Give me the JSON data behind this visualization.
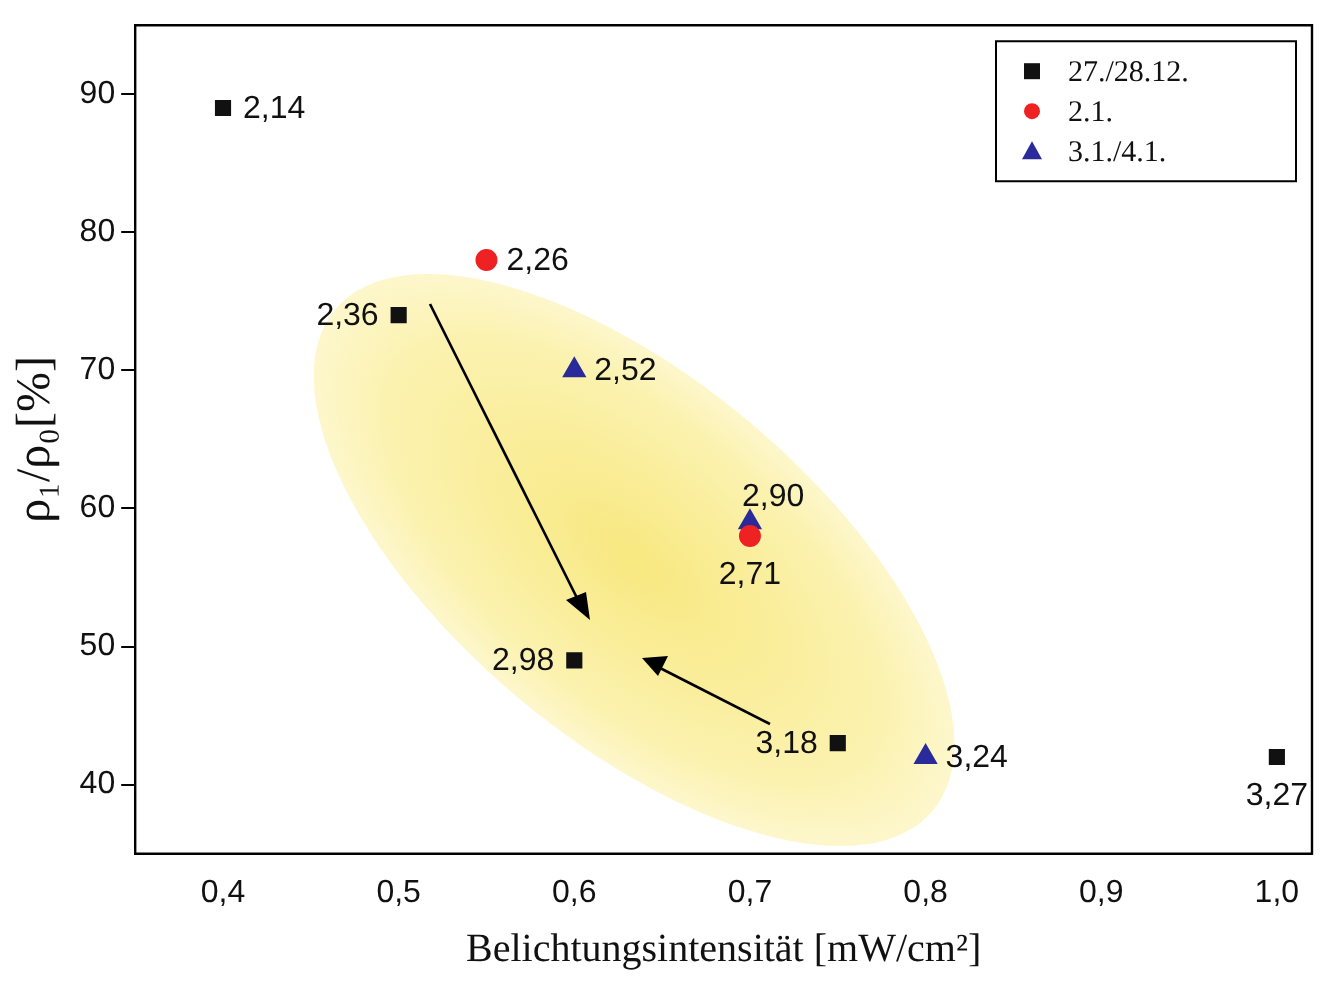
{
  "chart_data": {
    "type": "scatter",
    "xlabel": "Belichtungsintensität [mW/cm²]",
    "ylabel": "ρ₁/ρ₀[%]",
    "xlim": [
      0.35,
      1.02
    ],
    "xticks": [
      {
        "value": 0.4,
        "label": "0,4"
      },
      {
        "value": 0.5,
        "label": "0,5"
      },
      {
        "value": 0.6,
        "label": "0,6"
      },
      {
        "value": 0.7,
        "label": "0,7"
      },
      {
        "value": 0.8,
        "label": "0,8"
      },
      {
        "value": 0.9,
        "label": "0,9"
      },
      {
        "value": 1.0,
        "label": "1,0"
      }
    ],
    "ylim": [
      35,
      95
    ],
    "yticks": [
      40,
      50,
      60,
      70,
      80,
      90
    ],
    "grid": false,
    "legend": "top right",
    "series": [
      {
        "name": "27./28.12.",
        "color": "#111111",
        "marker": "square",
        "x": [
          0.4,
          0.5,
          0.6,
          0.75,
          1.0
        ],
        "values": [
          89,
          74,
          49,
          43,
          42
        ]
      },
      {
        "name": "2.1.",
        "color": "#ee2222",
        "marker": "circle",
        "x": [
          0.55,
          0.7
        ],
        "values": [
          78,
          58
        ]
      },
      {
        "name": "3.1./4.1.",
        "color": "#2a2a9a",
        "marker": "triangle",
        "x": [
          0.6,
          0.7,
          0.8
        ],
        "values": [
          70,
          59,
          42
        ]
      }
    ],
    "annotations": [
      {
        "text": "2,14",
        "x": 0.4,
        "y": 89
      },
      {
        "text": "2,36",
        "x": 0.5,
        "y": 74
      },
      {
        "text": "2,98",
        "x": 0.6,
        "y": 49
      },
      {
        "text": "3,18",
        "x": 0.75,
        "y": 43
      },
      {
        "text": "3,27",
        "x": 1.0,
        "y": 42
      },
      {
        "text": "2,26",
        "x": 0.55,
        "y": 78
      },
      {
        "text": "2,71",
        "x": 0.7,
        "y": 58
      },
      {
        "text": "2,52",
        "x": 0.6,
        "y": 70
      },
      {
        "text": "2,90",
        "x": 0.7,
        "y": 59
      },
      {
        "text": "3,24",
        "x": 0.8,
        "y": 42
      }
    ]
  }
}
